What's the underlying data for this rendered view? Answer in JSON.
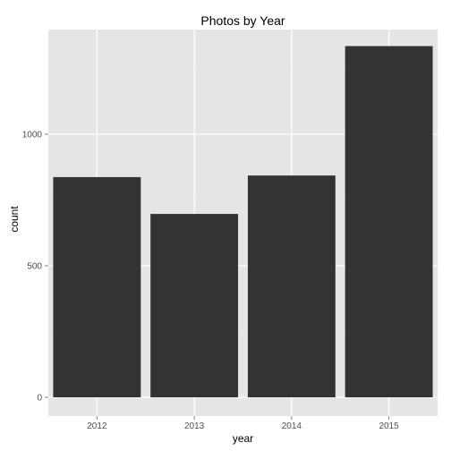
{
  "chart_data": {
    "type": "bar",
    "title": "Photos by Year",
    "xlabel": "year",
    "ylabel": "count",
    "categories": [
      "2012",
      "2013",
      "2014",
      "2015"
    ],
    "values": [
      837,
      697,
      843,
      1335
    ],
    "ylim": [
      0,
      1400
    ],
    "yticks": [
      0,
      500,
      1000
    ],
    "ytick_labels": [
      "0",
      "500",
      "1000"
    ],
    "grid": true,
    "colors": {
      "panel": "#E5E5E5",
      "grid_major": "#FFFFFF",
      "grid_minor": "#F2F2F2",
      "bar": "#333333",
      "tick_text": "#4D4D4D",
      "tick_mark": "#7F7F7F"
    }
  }
}
